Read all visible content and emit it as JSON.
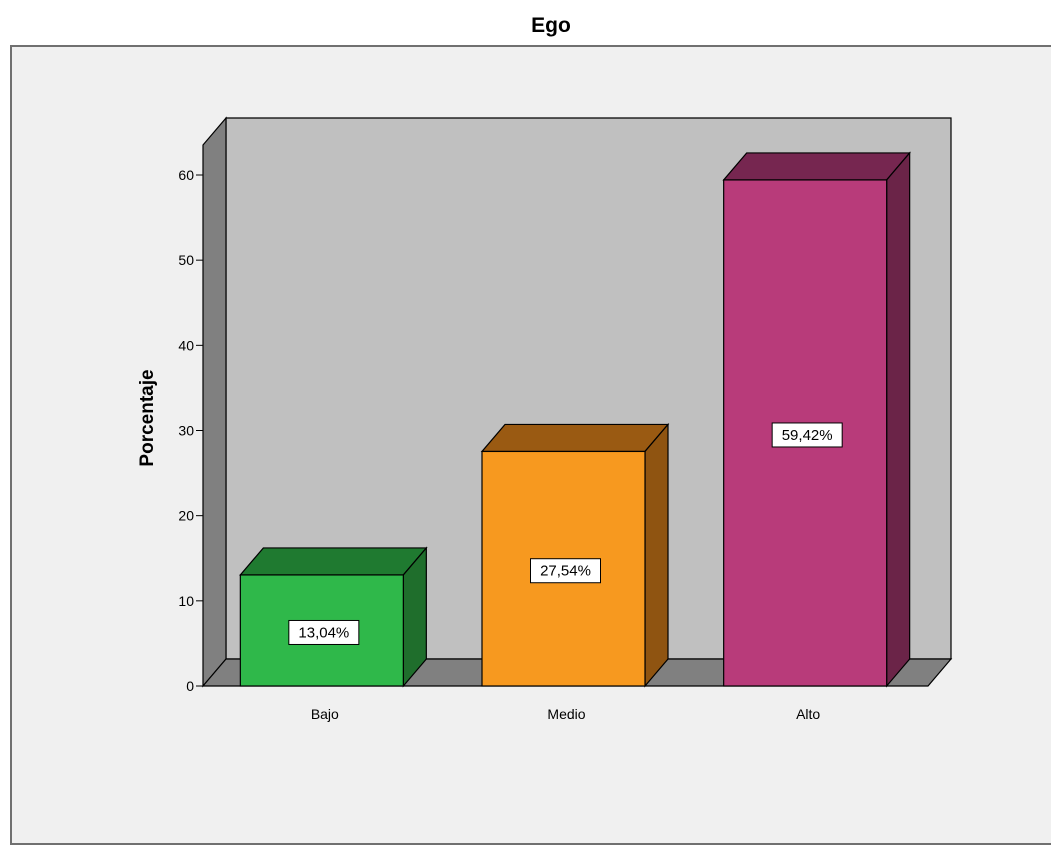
{
  "chart_data": {
    "type": "bar",
    "title": "Ego",
    "xlabel": "",
    "ylabel": "Porcentaje",
    "categories": [
      "Bajo",
      "Medio",
      "Alto"
    ],
    "values": [
      13.04,
      27.54,
      59.42
    ],
    "data_labels": [
      "13,04%",
      "27,54%",
      "59,42%"
    ],
    "yticks": [
      0,
      10,
      20,
      30,
      40,
      50,
      60
    ],
    "ylim": [
      0,
      60
    ],
    "style": "3d",
    "grid": false,
    "legend": "none",
    "colors": [
      {
        "front": "#2fb84a",
        "top": "#1f7a30",
        "side": "#1f6e2c"
      },
      {
        "front": "#f7991f",
        "top": "#9a5a12",
        "side": "#8f5411"
      },
      {
        "front": "#b83b7a",
        "top": "#762650",
        "side": "#6b2448"
      }
    ],
    "wall_color": "#c0c0c0",
    "floor_color": "#808080",
    "side_wall_color": "#808080"
  }
}
